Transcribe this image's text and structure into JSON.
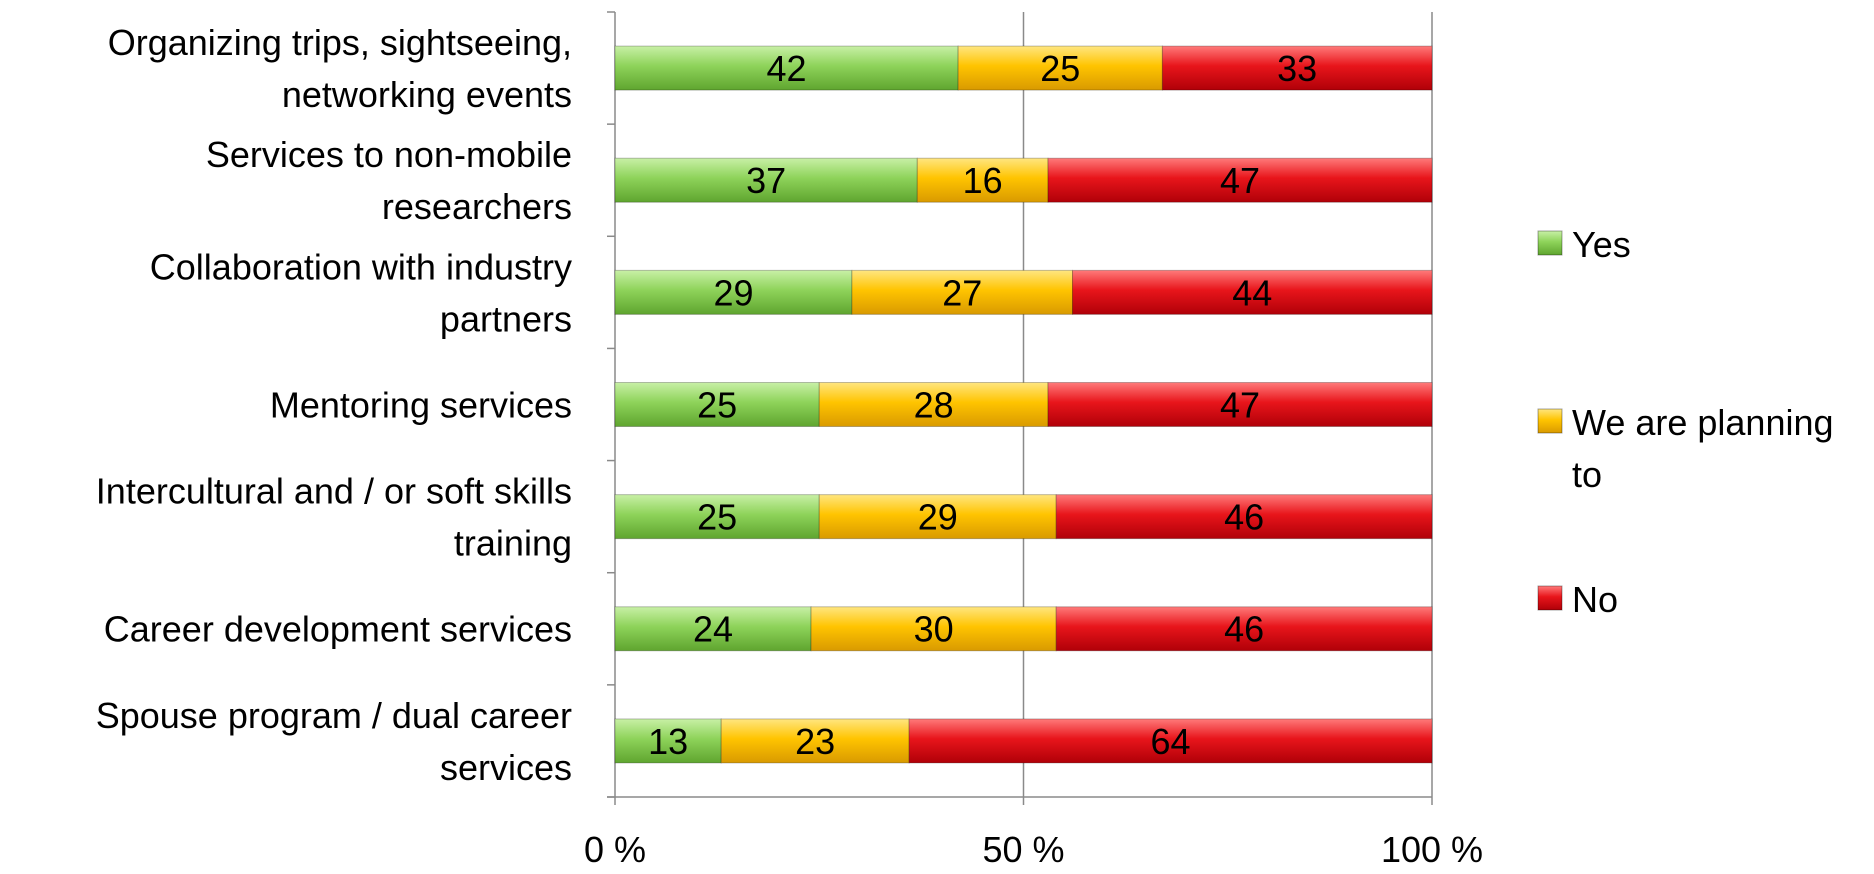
{
  "chart_data": {
    "type": "bar",
    "orientation": "horizontal",
    "stacked": true,
    "categories": [
      [
        "Organizing trips, sightseeing,",
        "networking events"
      ],
      [
        "Services to non-mobile",
        "researchers"
      ],
      [
        "Collaboration with industry",
        "partners"
      ],
      [
        "Mentoring services"
      ],
      [
        "Intercultural and / or soft skills",
        "training"
      ],
      [
        "Career development services"
      ],
      [
        "Spouse program / dual career",
        "services"
      ]
    ],
    "series": [
      {
        "name": "Yes",
        "color": "#8ed35a",
        "values": [
          42,
          37,
          29,
          25,
          25,
          24,
          13
        ]
      },
      {
        "name": "We are planning to",
        "color": "#ffc400",
        "values": [
          25,
          16,
          27,
          28,
          29,
          30,
          23
        ]
      },
      {
        "name": "No",
        "color": "#e8151b",
        "values": [
          33,
          47,
          44,
          47,
          46,
          46,
          64
        ]
      }
    ],
    "xlim": [
      0,
      100
    ],
    "xticks": [
      {
        "value": 0,
        "label": "0 %"
      },
      {
        "value": 50,
        "label": "50 %"
      },
      {
        "value": 100,
        "label": "100 %"
      }
    ],
    "grid": true,
    "legend_position": "right",
    "data_labels": true
  }
}
